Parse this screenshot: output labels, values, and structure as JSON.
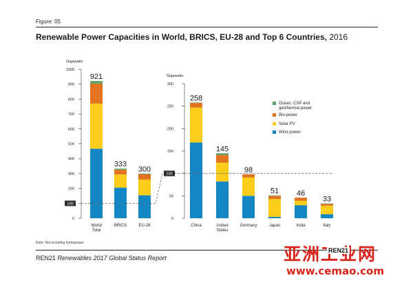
{
  "figure_label": "Figure: 05",
  "title": "Renewable Power Capacities in World, BRICS, EU-28 and Top 6 Countries,",
  "title_year": "2016",
  "note": "Note: Not including hydropower.",
  "footer": {
    "org": "REN21",
    "publication": "Renewables 2017 Global Status Report"
  },
  "watermark": {
    "text": "亚洲工业网",
    "url": "www.cemao.com",
    "badge": "REN21"
  },
  "colors": {
    "wind": "#1386c3",
    "solar": "#fbcc1a",
    "bio": "#e2731f",
    "ocean": "#5d9e69",
    "axis": "#333333",
    "dashed": "#666666"
  },
  "chart_data": [
    {
      "type": "bar",
      "stacked": true,
      "ylabel": "Gigawatts",
      "ylim": [
        0,
        1000
      ],
      "yticks": [
        "0",
        "100",
        "200",
        "300",
        "400",
        "500",
        "600",
        "700",
        "800",
        "900",
        "1000"
      ],
      "categories": [
        "World Total",
        "BRICS",
        "EU-28"
      ],
      "category_labels": [
        [
          "World",
          "Total"
        ],
        [
          "BRICS"
        ],
        [
          "EU-28"
        ]
      ],
      "totals": [
        "921",
        "333",
        "300"
      ],
      "total_values": [
        921,
        333,
        300
      ],
      "series": [
        {
          "key": "wind",
          "values": [
            467,
            206,
            154
          ]
        },
        {
          "key": "solar",
          "values": [
            303,
            88,
            106
          ]
        },
        {
          "key": "bio",
          "values": [
            134,
            32,
            36
          ]
        },
        {
          "key": "ocean",
          "values": [
            17,
            7,
            4
          ]
        }
      ],
      "reference_line": {
        "value": 100,
        "label": "100"
      }
    },
    {
      "type": "bar",
      "stacked": true,
      "ylabel": "Gigawatts",
      "ylim": [
        0,
        300
      ],
      "yticks": [
        "0",
        "50",
        "100",
        "150",
        "200",
        "250",
        "300"
      ],
      "categories": [
        "China",
        "United States",
        "Germany",
        "Japan",
        "India",
        "Italy"
      ],
      "category_labels": [
        [
          "China"
        ],
        [
          "United",
          "States"
        ],
        [
          "Germany"
        ],
        [
          "Japan"
        ],
        [
          "India"
        ],
        [
          "Italy"
        ]
      ],
      "totals": [
        "258",
        "145",
        "98",
        "51",
        "46",
        "33"
      ],
      "total_values": [
        258,
        145,
        98,
        51,
        46,
        33
      ],
      "series": [
        {
          "name": "Wind power",
          "key": "wind",
          "values": [
            169,
            82,
            50,
            3,
            29,
            9
          ]
        },
        {
          "name": "Solar PV",
          "key": "solar",
          "values": [
            78,
            42,
            41,
            40,
            10,
            19
          ]
        },
        {
          "name": "Bio-power",
          "key": "bio",
          "values": [
            10,
            17,
            7,
            7,
            7,
            4
          ]
        },
        {
          "name": "Ocean, CSP and geothermal power",
          "key": "ocean",
          "values": [
            1,
            4,
            0,
            1,
            0,
            1
          ]
        }
      ],
      "legend_position": "top-right",
      "legend": [
        {
          "key": "ocean",
          "lines": [
            "Ocean, CSP and",
            "geothermal power"
          ]
        },
        {
          "key": "bio",
          "lines": [
            "Bio-power"
          ]
        },
        {
          "key": "solar",
          "lines": [
            "Solar PV"
          ]
        },
        {
          "key": "wind",
          "lines": [
            "Wind power"
          ]
        }
      ],
      "reference_line": {
        "value": 100,
        "label": "100"
      }
    }
  ]
}
